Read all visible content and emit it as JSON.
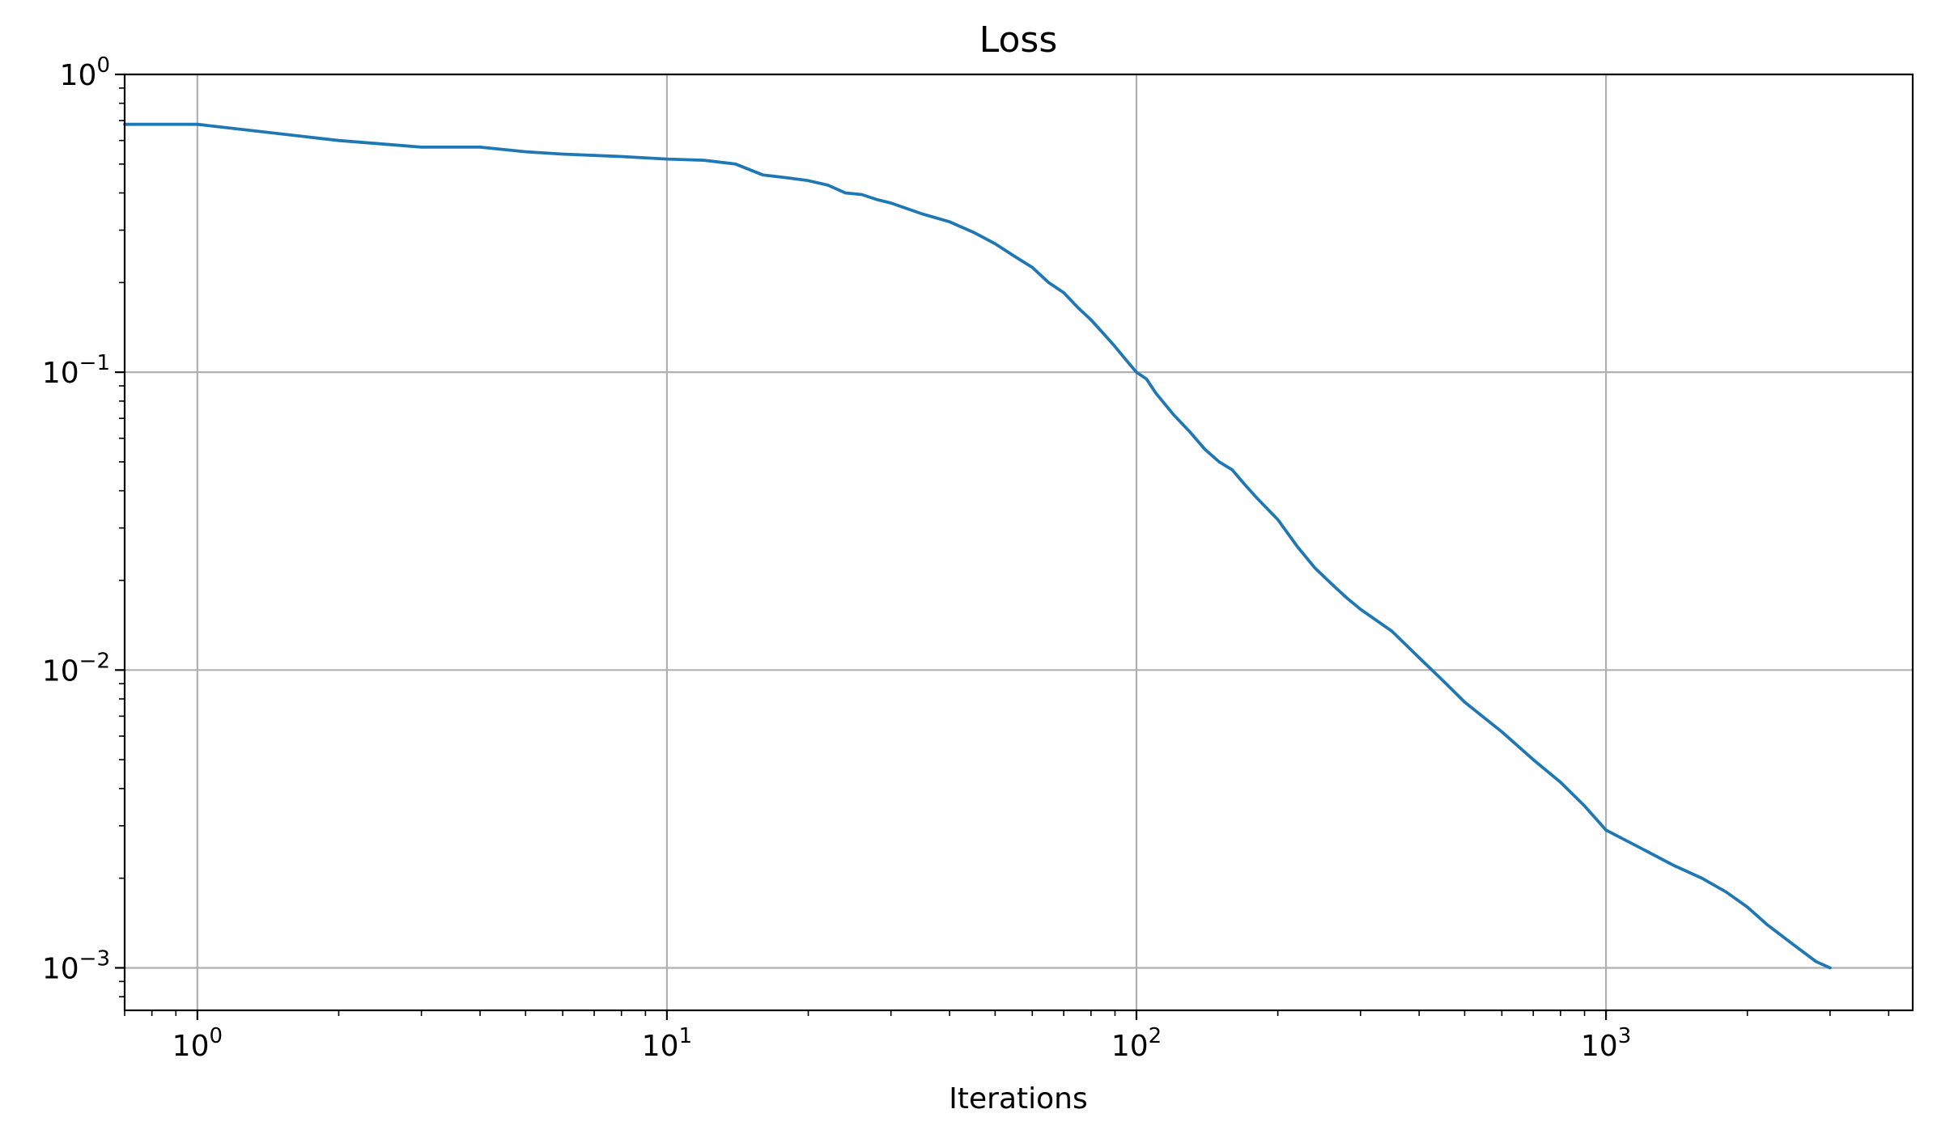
{
  "chart_data": {
    "type": "line",
    "title": "Loss",
    "xlabel": "Iterations",
    "ylabel": "",
    "x_scale": "log",
    "y_scale": "log",
    "xlim": [
      0.7,
      4500
    ],
    "ylim": [
      0.00072,
      1.0
    ],
    "grid": true,
    "x_ticks": [
      {
        "value": 1,
        "base": "10",
        "exp": "0"
      },
      {
        "value": 10,
        "base": "10",
        "exp": "1"
      },
      {
        "value": 100,
        "base": "10",
        "exp": "2"
      },
      {
        "value": 1000,
        "base": "10",
        "exp": "3"
      }
    ],
    "y_ticks": [
      {
        "value": 1,
        "base": "10",
        "exp": "0"
      },
      {
        "value": 0.1,
        "base": "10",
        "exp": "−1"
      },
      {
        "value": 0.01,
        "base": "10",
        "exp": "−2"
      },
      {
        "value": 0.001,
        "base": "10",
        "exp": "−3"
      }
    ],
    "series": [
      {
        "color": "#1f77b4",
        "points": [
          [
            0.7,
            0.68
          ],
          [
            1,
            0.68
          ],
          [
            2,
            0.6
          ],
          [
            3,
            0.57
          ],
          [
            4,
            0.57
          ],
          [
            5,
            0.55
          ],
          [
            6,
            0.54
          ],
          [
            8,
            0.53
          ],
          [
            10,
            0.52
          ],
          [
            12,
            0.515
          ],
          [
            14,
            0.5
          ],
          [
            16,
            0.46
          ],
          [
            18,
            0.45
          ],
          [
            20,
            0.44
          ],
          [
            22,
            0.425
          ],
          [
            24,
            0.4
          ],
          [
            26,
            0.395
          ],
          [
            28,
            0.38
          ],
          [
            30,
            0.37
          ],
          [
            35,
            0.34
          ],
          [
            40,
            0.32
          ],
          [
            45,
            0.295
          ],
          [
            50,
            0.27
          ],
          [
            55,
            0.245
          ],
          [
            60,
            0.225
          ],
          [
            65,
            0.2
          ],
          [
            70,
            0.185
          ],
          [
            75,
            0.165
          ],
          [
            80,
            0.15
          ],
          [
            85,
            0.135
          ],
          [
            90,
            0.122
          ],
          [
            95,
            0.11
          ],
          [
            100,
            0.1
          ],
          [
            105,
            0.095
          ],
          [
            110,
            0.085
          ],
          [
            120,
            0.072
          ],
          [
            130,
            0.063
          ],
          [
            140,
            0.055
          ],
          [
            150,
            0.05
          ],
          [
            160,
            0.047
          ],
          [
            170,
            0.042
          ],
          [
            180,
            0.038
          ],
          [
            200,
            0.032
          ],
          [
            220,
            0.026
          ],
          [
            240,
            0.022
          ],
          [
            260,
            0.0195
          ],
          [
            280,
            0.0175
          ],
          [
            300,
            0.016
          ],
          [
            350,
            0.0135
          ],
          [
            400,
            0.011
          ],
          [
            450,
            0.0092
          ],
          [
            500,
            0.0078
          ],
          [
            600,
            0.0062
          ],
          [
            700,
            0.005
          ],
          [
            800,
            0.0042
          ],
          [
            900,
            0.0035
          ],
          [
            1000,
            0.0029
          ],
          [
            1200,
            0.0025
          ],
          [
            1400,
            0.0022
          ],
          [
            1600,
            0.002
          ],
          [
            1800,
            0.0018
          ],
          [
            2000,
            0.0016
          ],
          [
            2200,
            0.0014
          ],
          [
            2500,
            0.0012
          ],
          [
            2800,
            0.00105
          ],
          [
            3000,
            0.001
          ]
        ]
      }
    ]
  }
}
